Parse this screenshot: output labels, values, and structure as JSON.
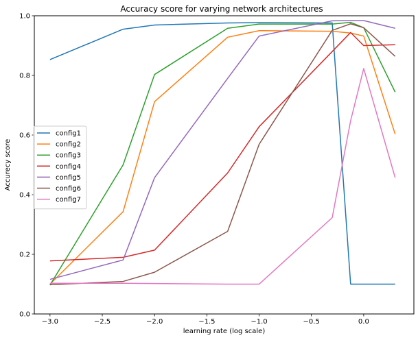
{
  "chart_data": {
    "type": "line",
    "title": "Accuracy score for varying network architectures",
    "xlabel": "learning rate (log scale)",
    "ylabel": "Accurecy score",
    "xlim": [
      -3.15,
      0.48
    ],
    "ylim": [
      0.0,
      1.0
    ],
    "xticks": [
      -3.0,
      -2.5,
      -2.0,
      -1.5,
      -1.0,
      -0.5,
      0.0
    ],
    "xtick_labels": [
      "−3.0",
      "−2.5",
      "−2.0",
      "−1.5",
      "−1.0",
      "−0.5",
      "0.0"
    ],
    "yticks": [
      0.0,
      0.2,
      0.4,
      0.6,
      0.8,
      1.0
    ],
    "ytick_labels": [
      "0.0",
      "0.2",
      "0.4",
      "0.6",
      "0.8",
      "1.0"
    ],
    "grid": false,
    "legend_position": "center-left",
    "x": [
      -3.0,
      -2.301,
      -2.0,
      -1.301,
      -1.0,
      -0.301,
      -0.125,
      0.0,
      0.301
    ],
    "series": [
      {
        "name": "config1",
        "color": "#1f77b4",
        "values": [
          0.853,
          0.955,
          0.969,
          0.976,
          0.977,
          0.976,
          0.1,
          0.1,
          0.1
        ]
      },
      {
        "name": "config2",
        "color": "#ff7f0e",
        "values": [
          0.1,
          0.343,
          0.712,
          0.928,
          0.95,
          0.948,
          0.942,
          0.932,
          0.603
        ]
      },
      {
        "name": "config3",
        "color": "#2ca02c",
        "values": [
          0.097,
          0.5,
          0.803,
          0.958,
          0.972,
          0.972,
          0.978,
          0.96,
          0.744
        ]
      },
      {
        "name": "config4",
        "color": "#d62728",
        "values": [
          0.178,
          0.19,
          0.214,
          0.473,
          0.628,
          0.88,
          0.944,
          0.9,
          0.903
        ]
      },
      {
        "name": "config5",
        "color": "#9467bd",
        "values": [
          0.116,
          0.181,
          0.457,
          0.79,
          0.932,
          0.983,
          0.984,
          0.984,
          0.958
        ]
      },
      {
        "name": "config6",
        "color": "#8c564b",
        "values": [
          0.098,
          0.109,
          0.14,
          0.277,
          0.569,
          0.951,
          0.973,
          0.96,
          0.864
        ]
      },
      {
        "name": "config7",
        "color": "#e377c2",
        "values": [
          0.103,
          0.103,
          0.102,
          0.1,
          0.1,
          0.323,
          0.648,
          0.823,
          0.457
        ]
      }
    ]
  }
}
